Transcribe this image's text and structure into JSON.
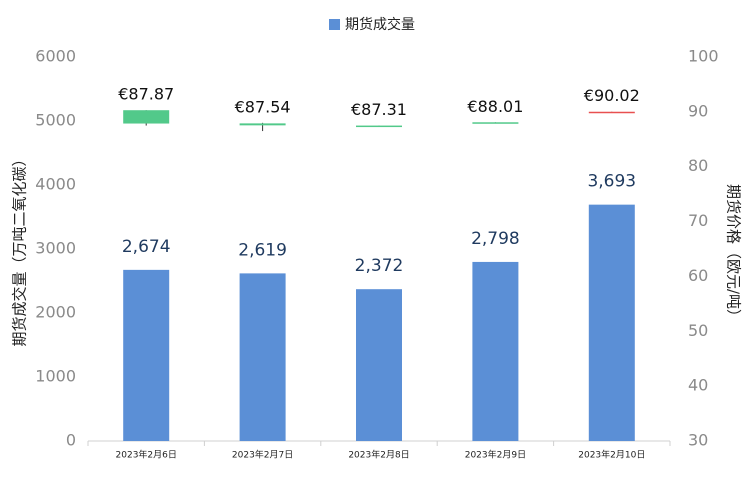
{
  "chart_data": {
    "type": "bar",
    "legend_position": "top",
    "y_label": "期货成交量（万吨二氧化碳）",
    "y2_label": "期货价格（欧元/吨）",
    "categories": [
      "2023年2月6日",
      "2023年2月7日",
      "2023年2月8日",
      "2023年2月9日",
      "2023年2月10日"
    ],
    "ylim": [
      0,
      6000
    ],
    "yticks": [
      0,
      1000,
      2000,
      3000,
      4000,
      5000,
      6000
    ],
    "y2lim": [
      30,
      100
    ],
    "y2ticks": [
      30,
      40,
      50,
      60,
      70,
      80,
      90,
      100
    ],
    "series": [
      {
        "type": "bar",
        "name": "期货成交量",
        "color": "#5b8fd6",
        "values": [
          2674,
          2619,
          2372,
          2798,
          3693
        ],
        "value_labels": [
          "2,674",
          "2,619",
          "2,372",
          "2,798",
          "3,693"
        ]
      },
      {
        "type": "candlestick",
        "axis": "y2",
        "colors": [
          "#52c98a",
          "#52c98a",
          "#52c98a",
          "#52c98a",
          "#e85050"
        ],
        "open": [
          90.3,
          87.9,
          87.5,
          88.1,
          89.9
        ],
        "high": [
          90.3,
          88.0,
          87.5,
          88.1,
          90.02
        ],
        "low": [
          87.5,
          86.5,
          87.3,
          88.0,
          89.9
        ],
        "close": [
          87.87,
          87.54,
          87.31,
          88.01,
          90.02
        ],
        "value_labels": [
          "€87.87",
          "€87.54",
          "€87.31",
          "€88.01",
          "€90.02"
        ]
      }
    ]
  }
}
